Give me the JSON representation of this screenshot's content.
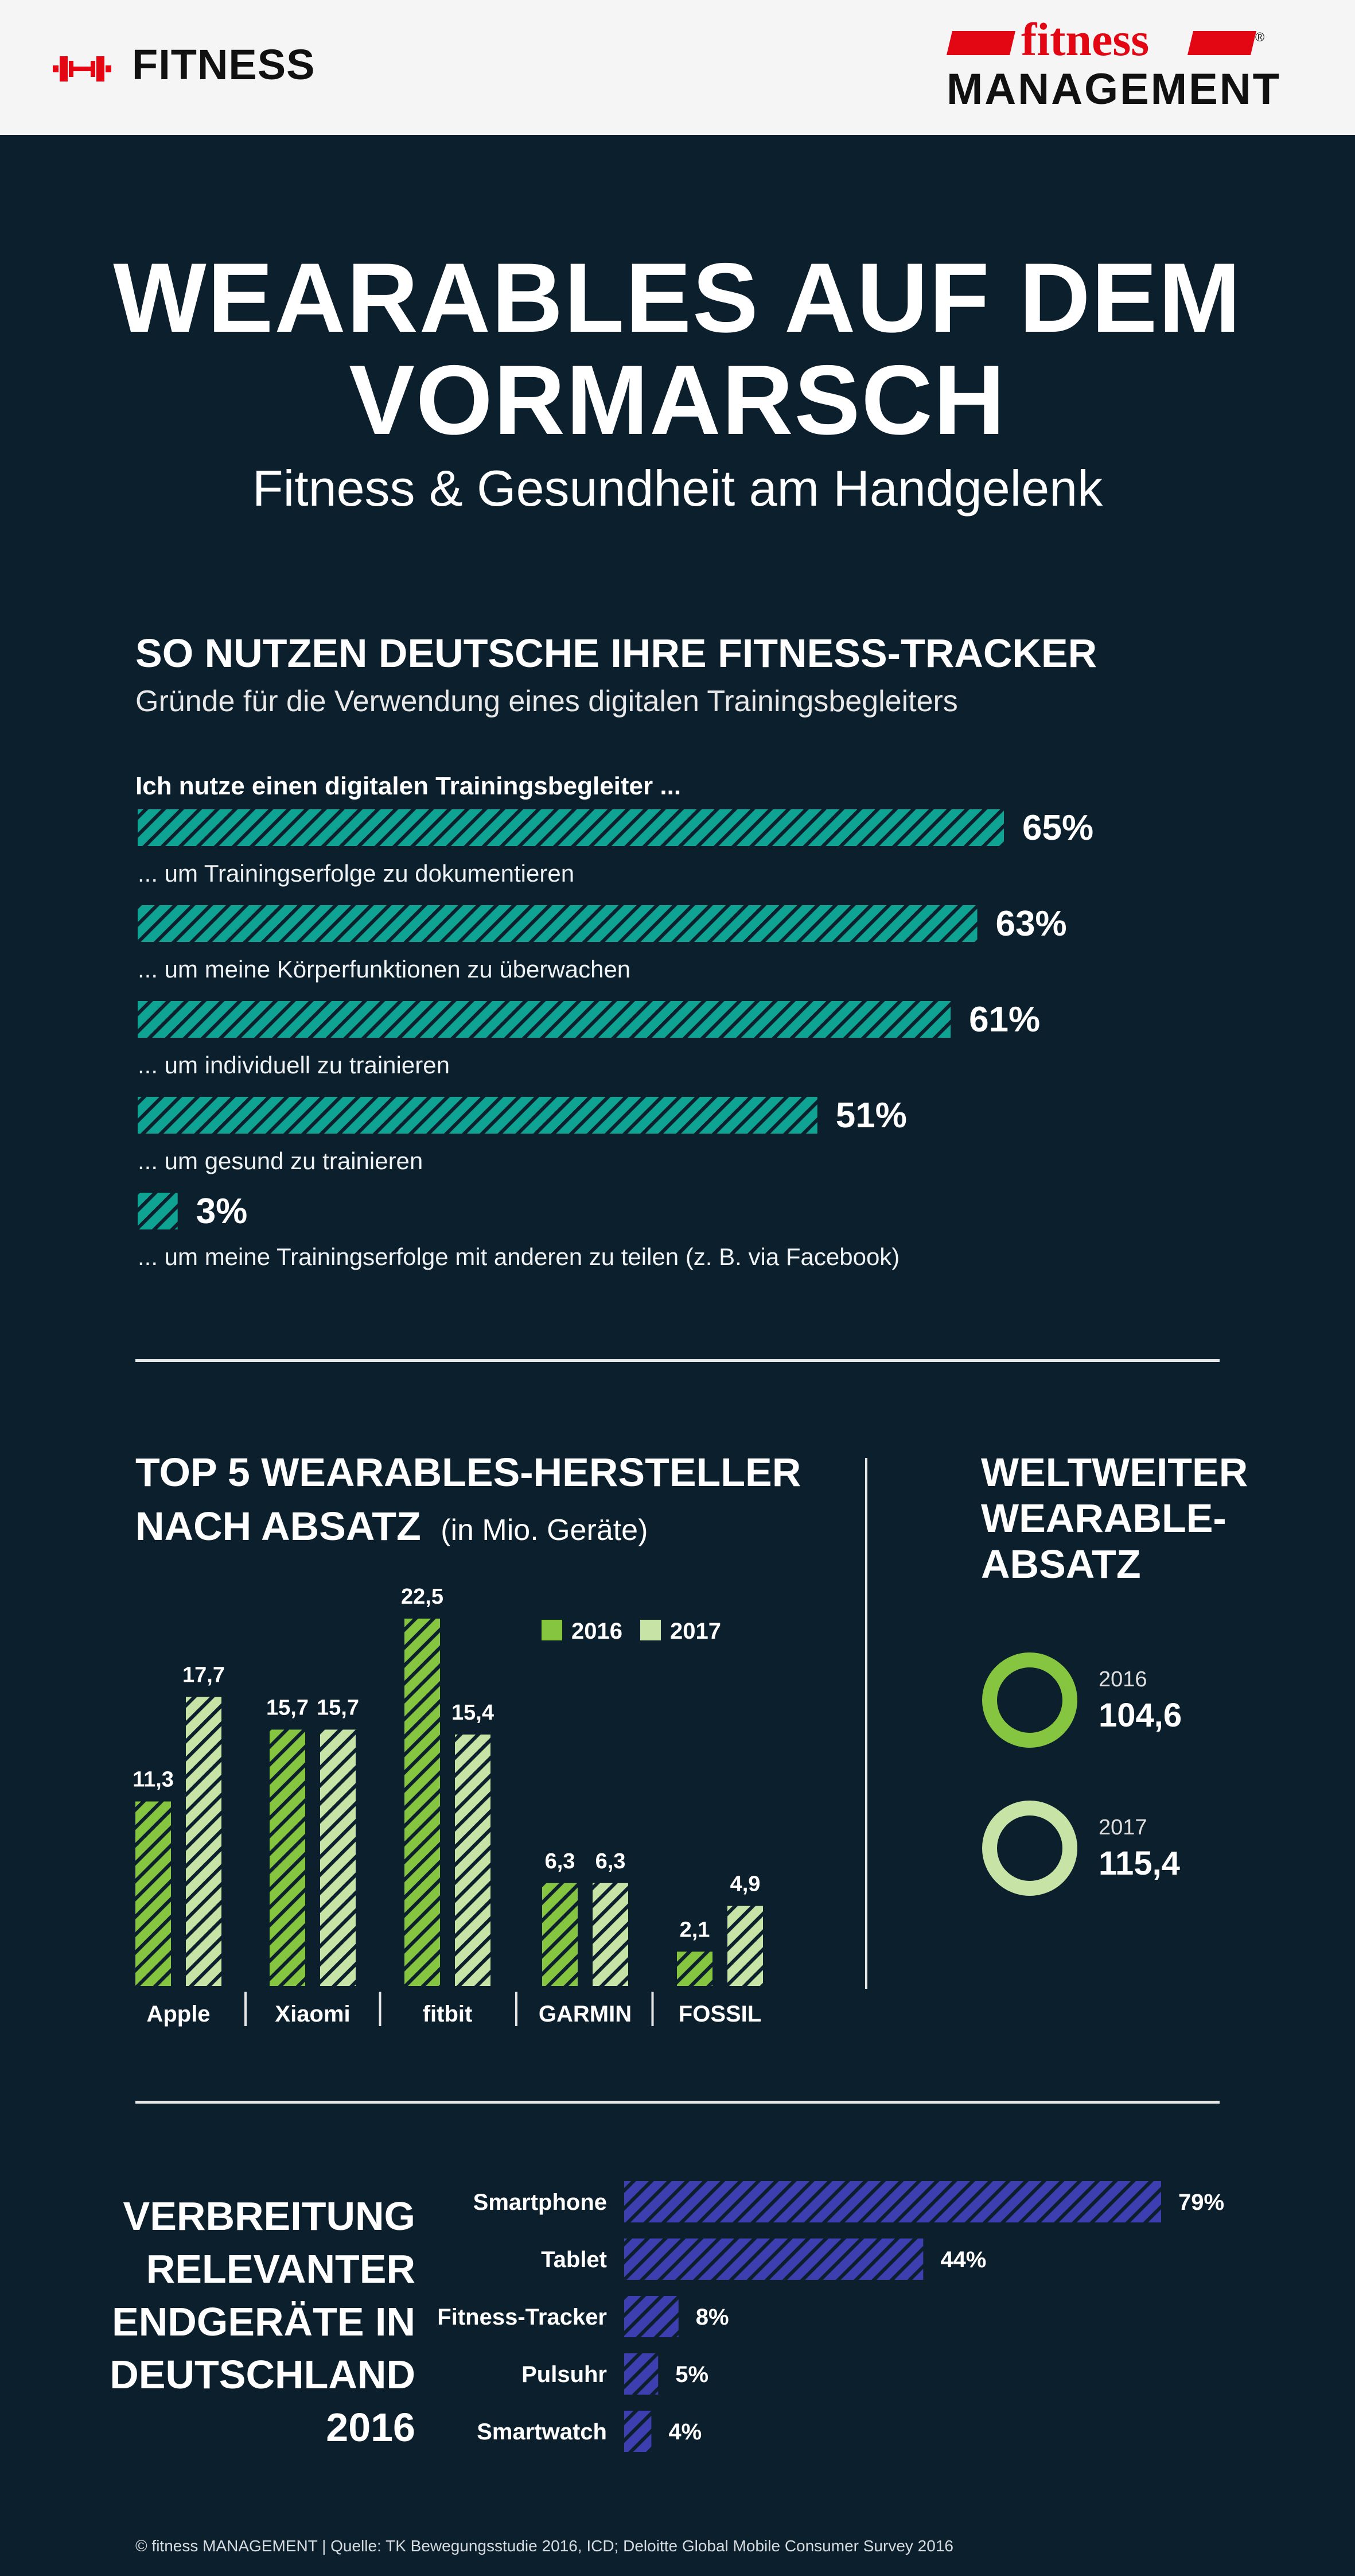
{
  "header": {
    "section_label": "FITNESS",
    "brand_top": "fitness",
    "brand_bottom": "MANAGEMENT",
    "brand_reg": "®"
  },
  "colors": {
    "teal": "#0fa394",
    "green_2016": "#86c540",
    "green_2017": "#c7e3a5",
    "blue": "#3d3fb0",
    "red": "#e30613",
    "background": "#0c1f2c"
  },
  "icons": {
    "logo": "dumbbell-icon"
  },
  "title": {
    "line1": "WEARABLES AUF DEM",
    "line2": "VORMARSCH",
    "subtitle": "Fitness & Gesundheit am Handgelenk"
  },
  "usage": {
    "heading": "SO NUTZEN DEUTSCHE IHRE FITNESS-TRACKER",
    "subheading": "Gründe für die Verwendung eines digitalen Trainingsbegleiters",
    "intro": "Ich nutze einen digitalen Trainingsbegleiter ..."
  },
  "top5": {
    "heading_line1": "TOP 5 WEARABLES-HERSTELLER",
    "heading_line2": "NACH ABSATZ",
    "unit": "(in Mio. Geräte)"
  },
  "worldwide": {
    "heading_lines": [
      "WELTWEITER",
      "WEARABLE-",
      "ABSATZ"
    ],
    "items": [
      {
        "year": "2016",
        "value": "104,6"
      },
      {
        "year": "2017",
        "value": "115,4"
      }
    ]
  },
  "devices": {
    "heading_lines": [
      "VERBREITUNG",
      "RELEVANTER",
      "ENDGERÄTE IN",
      "DEUTSCHLAND",
      "2016"
    ]
  },
  "footer": {
    "text": "© fitness MANAGEMENT  |  Quelle: TK Bewegungsstudie 2016, ICD; Deloitte Global Mobile Consumer Survey 2016"
  },
  "chart_data": [
    {
      "type": "bar",
      "orientation": "horizontal",
      "title": "SO NUTZEN DEUTSCHE IHRE FITNESS-TRACKER",
      "categories": [
        "... um Trainingserfolge zu dokumentieren",
        "... um meine Körperfunktionen zu überwachen",
        "... um individuell zu trainieren",
        "... um gesund zu trainieren",
        "... um meine Trainingserfolge mit anderen zu teilen (z. B. via Facebook)"
      ],
      "values": [
        65,
        63,
        61,
        51,
        3
      ],
      "value_labels": [
        "65%",
        "63%",
        "61%",
        "51%",
        "3%"
      ],
      "xlim": [
        0,
        100
      ],
      "grid": false
    },
    {
      "type": "bar",
      "orientation": "vertical",
      "title": "TOP 5 WEARABLES-HERSTELLER NACH ABSATZ",
      "categories": [
        "Apple",
        "Xiaomi",
        "fitbit",
        "GARMIN",
        "FOSSIL"
      ],
      "series": [
        {
          "name": "2016",
          "values": [
            11.3,
            15.7,
            22.5,
            6.3,
            2.1
          ],
          "labels": [
            "11,3",
            "15,7",
            "22,5",
            "6,3",
            "2,1"
          ]
        },
        {
          "name": "2017",
          "values": [
            17.7,
            15.7,
            15.4,
            6.3,
            4.9
          ],
          "labels": [
            "17,7",
            "15,7",
            "15,4",
            "6,3",
            "4,9"
          ]
        }
      ],
      "ylim": [
        0,
        22.5
      ],
      "legend": "top-right",
      "grid": false
    },
    {
      "type": "bar",
      "orientation": "horizontal",
      "title": "VERBREITUNG RELEVANTER ENDGERÄTE IN DEUTSCHLAND 2016",
      "categories": [
        "Smartphone",
        "Tablet",
        "Fitness-Tracker",
        "Pulsuhr",
        "Smartwatch"
      ],
      "values": [
        79,
        44,
        8,
        5,
        4
      ],
      "value_labels": [
        "79%",
        "44%",
        "8%",
        "5%",
        "4%"
      ],
      "xlim": [
        0,
        100
      ],
      "grid": false
    }
  ]
}
